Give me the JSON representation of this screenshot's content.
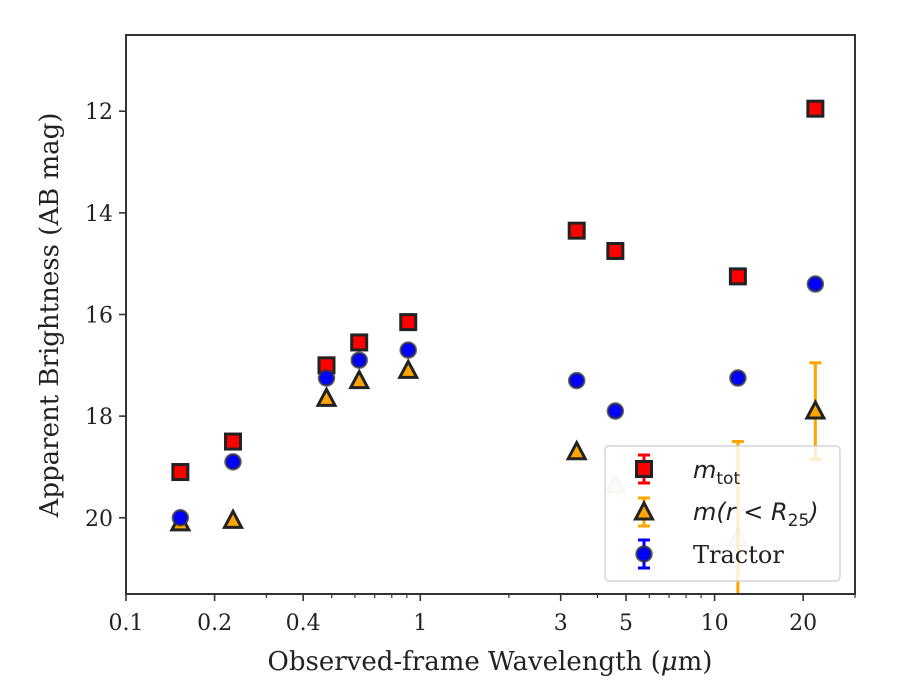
{
  "chart_data": {
    "type": "scatter",
    "title": "",
    "xlabel_parts": [
      "Observed-frame Wavelength (",
      "μ",
      "m)"
    ],
    "ylabel": "Apparent Brightness (AB mag)",
    "xscale": "log",
    "xlim": [
      0.1,
      30
    ],
    "ylim": [
      21.5,
      10.5
    ],
    "y_inverted": true,
    "xticks": [
      {
        "value": 0.1,
        "label": "0.1"
      },
      {
        "value": 0.2,
        "label": "0.2"
      },
      {
        "value": 0.4,
        "label": "0.4"
      },
      {
        "value": 1,
        "label": "1"
      },
      {
        "value": 3,
        "label": "3"
      },
      {
        "value": 5,
        "label": "5"
      },
      {
        "value": 10,
        "label": "10"
      },
      {
        "value": 20,
        "label": "20"
      }
    ],
    "yticks": [
      {
        "value": 12,
        "label": "12"
      },
      {
        "value": 14,
        "label": "14"
      },
      {
        "value": 16,
        "label": "16"
      },
      {
        "value": 18,
        "label": "18"
      },
      {
        "value": 20,
        "label": "20"
      }
    ],
    "grid": false,
    "legend_position": "lower-right",
    "legend_labels": {
      "mtot": {
        "base": "m",
        "sub": "tot"
      },
      "mr25": {
        "pre": "m(r < R",
        "sub": "25",
        "post": ")"
      },
      "tractor": "Tractor"
    },
    "series": [
      {
        "id": "mtot",
        "marker": "square",
        "color": "#ff0000",
        "edge_color": "#222222",
        "x": [
          0.153,
          0.231,
          0.48,
          0.62,
          0.91,
          3.4,
          4.6,
          12.0,
          22.0
        ],
        "y": [
          19.1,
          18.5,
          17.0,
          16.55,
          16.15,
          14.35,
          14.75,
          15.25,
          11.95
        ],
        "yerr": [
          0,
          0,
          0,
          0,
          0,
          0,
          0,
          0,
          0
        ]
      },
      {
        "id": "mr25",
        "marker": "triangle",
        "color": "#ffa500",
        "edge_color": "#222222",
        "x": [
          0.153,
          0.231,
          0.48,
          0.62,
          0.91,
          3.4,
          4.6,
          12.0,
          22.0
        ],
        "y": [
          20.1,
          20.05,
          17.65,
          17.3,
          17.1,
          18.7,
          19.35,
          20.4,
          17.9
        ],
        "yerr": [
          0,
          0,
          0,
          0,
          0,
          0,
          0,
          1.9,
          0.95
        ],
        "faded": [
          false,
          false,
          false,
          false,
          false,
          false,
          true,
          true,
          false
        ]
      },
      {
        "id": "tractor",
        "marker": "circle",
        "color": "#0000ff",
        "edge_color": "#333333",
        "x": [
          0.153,
          0.231,
          0.48,
          0.62,
          0.91,
          3.4,
          4.6,
          12.0,
          22.0
        ],
        "y": [
          20.0,
          18.9,
          17.25,
          16.9,
          16.7,
          17.3,
          17.9,
          17.25,
          15.4
        ],
        "yerr": [
          0,
          0,
          0,
          0,
          0,
          0,
          0,
          0,
          0
        ]
      }
    ]
  }
}
